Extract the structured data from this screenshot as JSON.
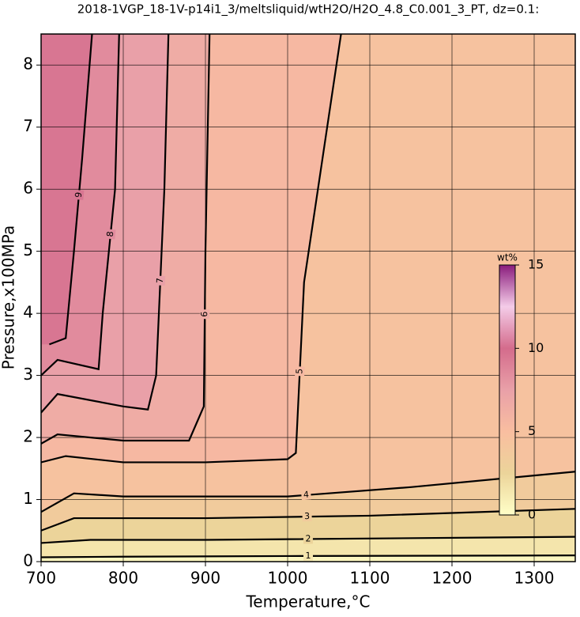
{
  "chart_data": {
    "type": "contour",
    "title": "2018-1VGP_18-1V-p14i1_3/meltsliquid/wtH2O/H2O_4.8_C0.001_3_PT, dz=0.1:",
    "x_label": "Temperature,°C",
    "y_label": "Pressure,x100MPa",
    "xlim": [
      700,
      1350
    ],
    "xticks": [
      700,
      800,
      900,
      1000,
      1100,
      1200,
      1300
    ],
    "ylim": [
      0,
      8.5
    ],
    "yticks": [
      0,
      1,
      2,
      3,
      4,
      5,
      6,
      7,
      8
    ],
    "grid": true,
    "colorbar_label": "wt%",
    "clim": [
      0,
      15
    ],
    "cticks": [
      0,
      5,
      10,
      15
    ],
    "colormap": [
      "#ffffc8",
      "#ecd49a",
      "#f9bea0",
      "#e9a0a8",
      "#d46c8c",
      "#f4cce8",
      "#8a1c7c"
    ],
    "contours": [
      {
        "level": 1,
        "x": [
          700,
          800,
          1000,
          1350
        ],
        "y": [
          0.07,
          0.08,
          0.09,
          0.1
        ]
      },
      {
        "level": 2,
        "x": [
          700,
          760,
          900,
          1350
        ],
        "y": [
          0.3,
          0.35,
          0.35,
          0.4
        ]
      },
      {
        "level": 3,
        "x": [
          700,
          740,
          900,
          1100,
          1350
        ],
        "y": [
          0.5,
          0.7,
          0.7,
          0.74,
          0.85
        ]
      },
      {
        "level": 4,
        "x": [
          700,
          740,
          800,
          1000,
          1150,
          1350
        ],
        "y": [
          0.8,
          1.1,
          1.05,
          1.05,
          1.2,
          1.45
        ]
      },
      {
        "level": 5,
        "x": [
          700,
          730,
          800,
          900,
          1000,
          1010,
          1020,
          1065
        ],
        "y": [
          1.6,
          1.7,
          1.6,
          1.6,
          1.65,
          1.75,
          4.5,
          8.5
        ]
      },
      {
        "level": 6,
        "x": [
          700,
          720,
          800,
          880,
          898,
          900,
          905
        ],
        "y": [
          1.9,
          2.05,
          1.95,
          1.95,
          2.5,
          5,
          8.5
        ]
      },
      {
        "level": 7,
        "x": [
          700,
          720,
          800,
          830,
          840,
          850,
          855
        ],
        "y": [
          2.4,
          2.7,
          2.5,
          2.45,
          3,
          6,
          8.5
        ]
      },
      {
        "level": 8,
        "x": [
          700,
          720,
          770,
          775,
          790,
          795
        ],
        "y": [
          3,
          3.25,
          3.1,
          4,
          6,
          8.5
        ]
      },
      {
        "level": 9,
        "x": [
          710,
          730,
          740,
          750,
          762
        ],
        "y": [
          3.5,
          3.6,
          5,
          6.5,
          8.5
        ]
      }
    ]
  }
}
